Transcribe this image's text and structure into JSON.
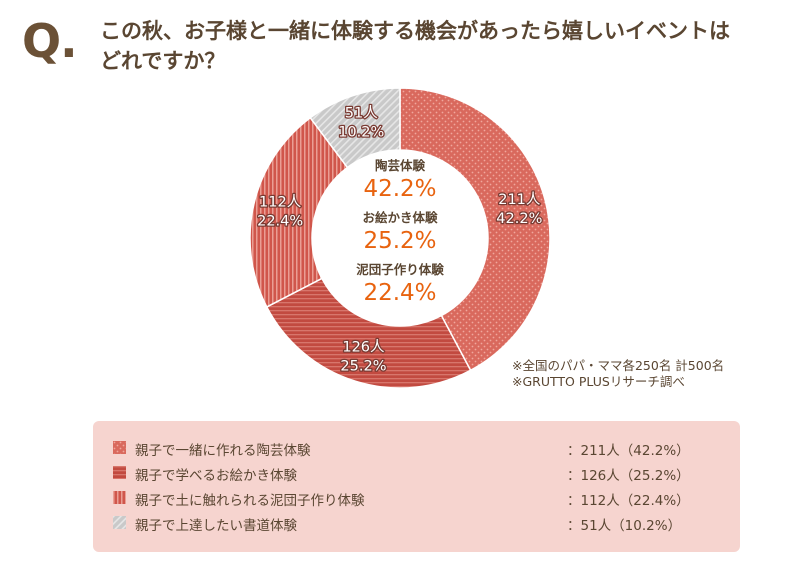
{
  "question": {
    "mark": "Q.",
    "line1": "この秋、お子様と一緒に体験する機会があったら嬉しいイベントは",
    "line2": "どれですか？"
  },
  "chart_data": {
    "type": "pie",
    "style": "donut",
    "categories": [
      "親子で一緒に作れる陶芸体験",
      "親子で学べるお絵かき体験",
      "親子で土に触れられる泥団子作り体験",
      "親子で上達したい書道体験"
    ],
    "counts": [
      211,
      126,
      112,
      51
    ],
    "percentages": [
      42.2,
      25.2,
      22.4,
      10.2
    ],
    "slice_labels": [
      {
        "count": "211人",
        "pct": "42.2%"
      },
      {
        "count": "126人",
        "pct": "25.2%"
      },
      {
        "count": "112人",
        "pct": "22.4%"
      },
      {
        "count": "51人",
        "pct": "10.2%"
      }
    ],
    "colors": [
      "#d9695d",
      "#c24a40",
      "#d0564b",
      "#c9c9c9"
    ],
    "center": [
      {
        "name": "陶芸体験",
        "value": "42.2%"
      },
      {
        "name": "お絵かき体験",
        "value": "25.2%"
      },
      {
        "name": "泥団子作り体験",
        "value": "22.4%"
      }
    ],
    "center_value_color": "#e8630f"
  },
  "notes": [
    "※全国のパパ・ママ各250名 計500名",
    "※GRUTTO PLUSリサーチ調べ"
  ],
  "legend": [
    {
      "label": "親子で一緒に作れる陶芸体験",
      "value": "：211人（42.2%）"
    },
    {
      "label": "親子で学べるお絵かき体験",
      "value": "：126人（25.2%）"
    },
    {
      "label": "親子で土に触れられる泥団子作り体験",
      "value": "：112人（22.4%）"
    },
    {
      "label": "親子で上達したい書道体験",
      "value": "：51人（10.2%）"
    }
  ]
}
